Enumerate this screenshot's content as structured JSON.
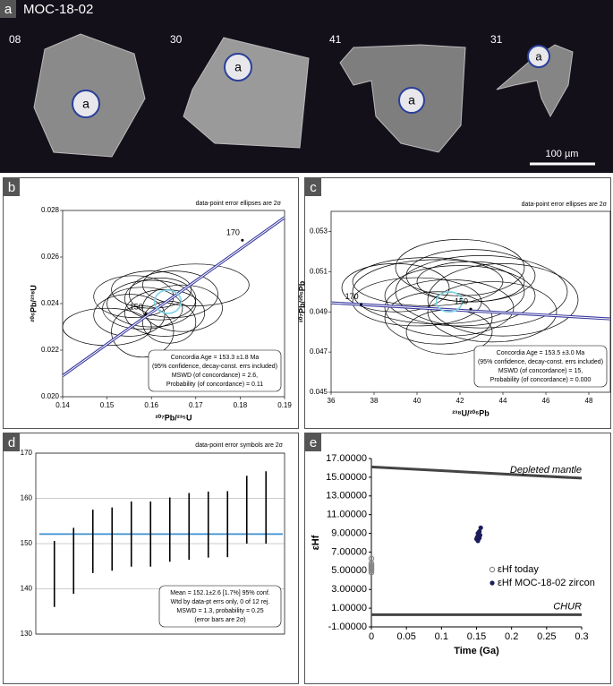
{
  "image_panel": {
    "label": "a",
    "sample": "MOC-18-02",
    "grains": [
      {
        "id": "08",
        "spot": "a"
      },
      {
        "id": "30",
        "spot": "a"
      },
      {
        "id": "41",
        "spot": "a"
      },
      {
        "id": "31",
        "spot": "a"
      }
    ],
    "scale_bar": "100 µm"
  },
  "chart_data": [
    {
      "type": "concordia",
      "panel": "b",
      "note": "data-point error ellipses are 2σ",
      "xlabel": "²⁰⁷Pb/²³⁵U",
      "ylabel": "²⁰⁶Pb/²³⁸U",
      "xlim": [
        0.14,
        0.19
      ],
      "xticks": [
        0.14,
        0.15,
        0.16,
        0.17,
        0.18,
        0.19
      ],
      "ylim": [
        0.02,
        0.028
      ],
      "yticks": [
        {
          "value": 0.02,
          "label": "0.020"
        },
        {
          "value": 0.022,
          "label": "0.022"
        },
        {
          "value": 0.024,
          "label": "0.024"
        },
        {
          "value": 0.026,
          "label": "0.026"
        },
        {
          "value": 0.028,
          "label": "0.028"
        }
      ],
      "ellipses": {
        "x": [
          0.15,
          0.155,
          0.158,
          0.16,
          0.162,
          0.163,
          0.165,
          0.16,
          0.167,
          0.17,
          0.158,
          0.164,
          0.156
        ],
        "y": [
          0.023,
          0.0235,
          0.0238,
          0.024,
          0.0242,
          0.0236,
          0.0244,
          0.0246,
          0.0238,
          0.0248,
          0.0228,
          0.0232,
          0.0243
        ],
        "x_err": [
          0.01,
          0.008,
          0.009,
          0.01,
          0.008,
          0.009,
          0.01,
          0.009,
          0.009,
          0.012,
          0.007,
          0.006,
          0.009
        ],
        "y_err": [
          0.0008,
          0.0009,
          0.0009,
          0.001,
          0.0009,
          0.001,
          0.001,
          0.0008,
          0.001,
          0.0009,
          0.0011,
          0.0009,
          0.0009
        ]
      },
      "concordia": {
        "x": [
          0.14,
          0.19
        ],
        "y": [
          0.0209,
          0.0277
        ],
        "color": "#3a3aa0"
      },
      "age_markers": {
        "x": [
          0.1587,
          0.1805
        ],
        "y": [
          0.02354,
          0.02672
        ],
        "labels": [
          "150",
          "170"
        ]
      },
      "concordia_age": {
        "x": 0.1637,
        "y": 0.02408,
        "x_err": 0.003,
        "y_err": 0.0005,
        "color": "#7fd4e8"
      },
      "result_box": [
        "Concordia Age = 153.3 ±1.8 Ma",
        "(95% confidence, decay-const. errs included)",
        "MSWD (of concordance) = 2.6,",
        "Probability (of concordance) = 0.11"
      ]
    },
    {
      "type": "concordia",
      "panel": "c",
      "note": "data-point error ellipses are 2σ",
      "xlabel": "²³⁸U/²⁰⁶Pb",
      "ylabel": "²⁰⁷Pb/²⁰⁶Pb",
      "xlim": [
        36,
        49
      ],
      "xticks": [
        36,
        38,
        40,
        42,
        44,
        46,
        48
      ],
      "ylim": [
        0.045,
        0.054
      ],
      "yticks": [
        0.045,
        0.047,
        0.049,
        0.051,
        0.053
      ],
      "ellipses": {
        "x": [
          41,
          42,
          40.5,
          43,
          41.5,
          42.5,
          40,
          44,
          41,
          42,
          39,
          43.5,
          41.5,
          42.5
        ],
        "y": [
          0.05,
          0.0498,
          0.0505,
          0.05,
          0.0492,
          0.0508,
          0.0495,
          0.0496,
          0.0487,
          0.0512,
          0.0502,
          0.049,
          0.048,
          0.0505
        ],
        "x_err": [
          4,
          3.5,
          3.5,
          4,
          3,
          3,
          3,
          3.5,
          2.5,
          3,
          2.5,
          3,
          2,
          2.5
        ],
        "y_err": [
          0.0016,
          0.0015,
          0.0012,
          0.0018,
          0.0014,
          0.0013,
          0.0012,
          0.0018,
          0.0013,
          0.0014,
          0.0012,
          0.0015,
          0.0011,
          0.001
        ]
      },
      "concordia": {
        "x": [
          36,
          49
        ],
        "y": [
          0.04945,
          0.04865
        ],
        "color": "#3a3aa0"
      },
      "age_markers": {
        "x": [
          37.4,
          42.5
        ],
        "y": [
          0.04938,
          0.04914
        ],
        "labels": [
          "170",
          "150"
        ]
      },
      "concordia_age": {
        "x": 41.5,
        "y": 0.0495,
        "x_err": 0.6,
        "y_err": 0.0005,
        "color": "#7fd4e8"
      },
      "result_box": [
        "Concordia Age = 153.5 ±3.0 Ma",
        "(95% confidence, decay-const. errs included)",
        "MSWD (of concordance) = 15,",
        "Probability (of concordance) = 0.000"
      ]
    },
    {
      "type": "weighted_mean",
      "panel": "d",
      "note": "data-point error symbols are 2σ",
      "ylim": [
        130,
        170
      ],
      "yticks": [
        130,
        140,
        150,
        160,
        170
      ],
      "grid": true,
      "values": [
        143.3,
        146.2,
        150.5,
        151,
        152.1,
        152.1,
        153.1,
        153.8,
        154.2,
        154.3,
        157.5,
        158
      ],
      "errors": [
        7.3,
        7.3,
        7,
        7,
        7.2,
        7.2,
        7.1,
        7.4,
        7.3,
        7.3,
        7.5,
        8
      ],
      "mean": 152.1,
      "mean_color": "#3a8fd0",
      "result_box": [
        "Mean = 152.1±2.6  [1.7%]  95% conf.",
        "Wtd by data-pt errs only, 0 of 12 rej.",
        "MSWD = 1.3, probability = 0.25",
        "(error bars are 2σ)"
      ]
    },
    {
      "type": "scatter",
      "panel": "e",
      "xlabel": "Time (Ga)",
      "ylabel": "εHf",
      "xlim": [
        0,
        0.3
      ],
      "xticks": [
        0,
        0.05,
        0.1,
        0.15,
        0.2,
        0.25,
        0.3
      ],
      "ylim": [
        -1,
        17
      ],
      "yticks": [
        {
          "value": 17,
          "label": "17.00000"
        },
        {
          "value": 15,
          "label": "15.00000"
        },
        {
          "value": 13,
          "label": "13.00000"
        },
        {
          "value": 11,
          "label": "11.00000"
        },
        {
          "value": 9,
          "label": "9.00000"
        },
        {
          "value": 7,
          "label": "7.00000"
        },
        {
          "value": 5,
          "label": "5.00000"
        },
        {
          "value": 3,
          "label": "3.00000"
        },
        {
          "value": 1,
          "label": "1.00000"
        },
        {
          "value": -1,
          "label": "-1.00000"
        }
      ],
      "series": [
        {
          "name": "εHf today",
          "color": "#888888",
          "marker": "open",
          "x": [
            0,
            0,
            0,
            0,
            0,
            0,
            0,
            0,
            0,
            0
          ],
          "y": [
            4.8,
            5,
            5.1,
            5.2,
            5.3,
            5.4,
            5.5,
            5.6,
            5.8,
            6.3
          ]
        },
        {
          "name": "εHf MOC-18-02 zircon",
          "color": "#1c1c5c",
          "marker": "filled",
          "x": [
            0.152,
            0.15,
            0.154,
            0.151,
            0.153,
            0.155,
            0.152,
            0.154,
            0.156
          ],
          "y": [
            8.2,
            8.4,
            8.5,
            8.6,
            8.7,
            8.8,
            9,
            9.2,
            9.6
          ]
        }
      ],
      "lines": [
        {
          "name": "Depleted mantle",
          "color": "#444444",
          "x": [
            0,
            0.3
          ],
          "y": [
            16.1,
            14.9
          ]
        },
        {
          "name": "CHUR",
          "color": "#444444",
          "x": [
            0,
            0.3
          ],
          "y": [
            0.3,
            0.3
          ]
        }
      ]
    }
  ]
}
